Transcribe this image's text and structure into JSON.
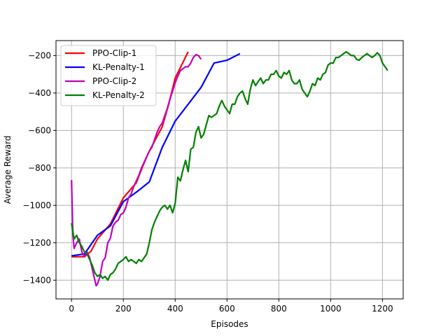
{
  "chart_data": {
    "type": "line",
    "title": "",
    "xlabel": "Episodes",
    "ylabel": "Average Reward",
    "xlim": [
      -60,
      1280
    ],
    "ylim": [
      -1500,
      -120
    ],
    "x_ticks": [
      0,
      200,
      400,
      600,
      800,
      1000,
      1200
    ],
    "y_ticks": [
      -1400,
      -1200,
      -1000,
      -800,
      -600,
      -400,
      -200
    ],
    "grid": true,
    "legend_position": "upper-left",
    "series": [
      {
        "name": "PPO-Clip-1",
        "color": "#ff0000",
        "x": [
          0,
          25,
          50,
          75,
          100,
          150,
          200,
          250,
          275,
          300,
          350,
          375,
          400,
          425,
          450
        ],
        "y": [
          -1275,
          -1275,
          -1275,
          -1245,
          -1180,
          -1100,
          -960,
          -880,
          -790,
          -710,
          -580,
          -460,
          -320,
          -250,
          -180
        ]
      },
      {
        "name": "KL-Penalty-1",
        "color": "#0000ff",
        "x": [
          0,
          50,
          100,
          150,
          200,
          250,
          300,
          350,
          400,
          450,
          500,
          550,
          600,
          650
        ],
        "y": [
          -1270,
          -1260,
          -1160,
          -1110,
          -980,
          -930,
          -875,
          -690,
          -550,
          -460,
          -370,
          -240,
          -225,
          -190
        ]
      },
      {
        "name": "PPO-Clip-2",
        "color": "#bf00bf",
        "x": [
          0,
          5,
          10,
          20,
          30,
          40,
          50,
          60,
          70,
          80,
          90,
          95,
          100,
          110,
          120,
          130,
          140,
          150,
          160,
          170,
          180,
          190,
          200,
          210,
          220,
          230,
          240,
          250,
          260,
          270,
          280,
          290,
          300,
          310,
          320,
          330,
          340,
          350,
          360,
          370,
          380,
          390,
          400,
          410,
          420,
          430,
          440,
          450,
          460,
          470,
          480,
          490,
          500
        ],
        "y": [
          -865,
          -1160,
          -1230,
          -1200,
          -1180,
          -1250,
          -1275,
          -1250,
          -1280,
          -1340,
          -1400,
          -1430,
          -1420,
          -1380,
          -1300,
          -1280,
          -1200,
          -1175,
          -1110,
          -1090,
          -1080,
          -1050,
          -1040,
          -1010,
          -960,
          -940,
          -900,
          -870,
          -840,
          -800,
          -770,
          -740,
          -710,
          -690,
          -650,
          -610,
          -580,
          -560,
          -520,
          -480,
          -430,
          -390,
          -345,
          -310,
          -280,
          -270,
          -260,
          -260,
          -240,
          -210,
          -195,
          -200,
          -220
        ]
      },
      {
        "name": "KL-Penalty-2",
        "color": "#008000",
        "x": [
          0,
          10,
          20,
          30,
          40,
          50,
          60,
          70,
          80,
          90,
          100,
          110,
          120,
          130,
          140,
          150,
          160,
          170,
          180,
          190,
          200,
          210,
          220,
          230,
          240,
          250,
          260,
          270,
          280,
          290,
          300,
          310,
          320,
          330,
          340,
          350,
          360,
          370,
          380,
          390,
          400,
          410,
          420,
          430,
          440,
          450,
          460,
          470,
          480,
          490,
          500,
          510,
          520,
          530,
          540,
          550,
          560,
          570,
          580,
          590,
          600,
          610,
          620,
          630,
          640,
          650,
          660,
          670,
          680,
          690,
          700,
          710,
          720,
          730,
          740,
          750,
          760,
          770,
          780,
          790,
          800,
          810,
          820,
          830,
          840,
          850,
          860,
          870,
          880,
          890,
          900,
          910,
          920,
          930,
          940,
          950,
          960,
          970,
          980,
          990,
          1000,
          1010,
          1020,
          1030,
          1040,
          1050,
          1060,
          1070,
          1080,
          1090,
          1100,
          1110,
          1120,
          1130,
          1140,
          1150,
          1160,
          1170,
          1180,
          1190,
          1200,
          1210,
          1220
        ],
        "y": [
          -1095,
          -1180,
          -1160,
          -1200,
          -1220,
          -1250,
          -1260,
          -1290,
          -1320,
          -1360,
          -1380,
          -1370,
          -1390,
          -1380,
          -1400,
          -1370,
          -1360,
          -1340,
          -1310,
          -1300,
          -1290,
          -1275,
          -1300,
          -1290,
          -1300,
          -1310,
          -1290,
          -1300,
          -1280,
          -1260,
          -1200,
          -1130,
          -1090,
          -1060,
          -1030,
          -1010,
          -1000,
          -1020,
          -1000,
          -1040,
          -990,
          -850,
          -870,
          -810,
          -760,
          -820,
          -700,
          -690,
          -610,
          -580,
          -640,
          -620,
          -570,
          -520,
          -530,
          -520,
          -510,
          -470,
          -440,
          -470,
          -490,
          -510,
          -460,
          -460,
          -420,
          -400,
          -390,
          -430,
          -460,
          -380,
          -330,
          -360,
          -340,
          -320,
          -350,
          -330,
          -330,
          -300,
          -300,
          -280,
          -310,
          -320,
          -290,
          -300,
          -280,
          -330,
          -350,
          -350,
          -330,
          -380,
          -400,
          -420,
          -390,
          -350,
          -360,
          -320,
          -330,
          -300,
          -290,
          -250,
          -240,
          -240,
          -210,
          -210,
          -200,
          -190,
          -180,
          -190,
          -200,
          -200,
          -220,
          -225,
          -210,
          -200,
          -190,
          -200,
          -210,
          -200,
          -185,
          -200,
          -240,
          -260,
          -280
        ]
      }
    ]
  }
}
